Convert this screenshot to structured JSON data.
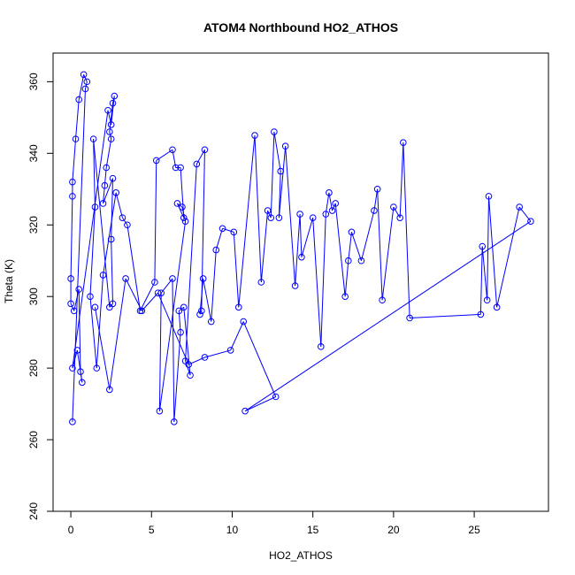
{
  "chart_data": {
    "type": "scatter",
    "title": "ATOM4 Northbound HO2_ATHOS",
    "xlabel": "HO2_ATHOS",
    "ylabel": "Theta (K)",
    "xlim": [
      -1.1,
      29.6
    ],
    "ylim": [
      240,
      368
    ],
    "x_ticks": [
      0,
      5,
      10,
      15,
      20,
      25
    ],
    "y_ticks": [
      240,
      260,
      280,
      300,
      320,
      340,
      360
    ],
    "grid": false,
    "legend": "none",
    "marker": "open-circle",
    "connected": true,
    "color": "#0000ff",
    "series": [
      {
        "x": [
          0.1,
          0.9,
          1.0,
          0.8,
          0.5,
          0.3,
          0.1,
          0.1,
          0.0,
          0.0,
          0.2,
          0.5,
          0.6,
          0.7,
          0.4,
          0.1,
          2.3,
          2.5,
          2.7,
          2.6,
          2.4,
          2.5,
          2.2,
          2.1,
          2.0,
          2.6,
          2.5,
          2.6,
          2.4,
          1.4,
          1.5,
          1.2,
          1.6,
          2.0,
          2.8,
          3.2,
          3.5,
          4.3,
          5.2,
          5.3,
          6.3,
          6.5,
          6.8,
          7.0,
          6.6,
          6.9,
          7.1,
          5.5,
          5.6,
          6.3,
          6.4,
          6.8,
          6.7,
          7.0,
          7.4,
          7.1,
          7.8,
          8.3,
          8.1,
          8.0,
          8.2,
          8.7,
          9.0,
          9.4,
          10.1,
          10.4,
          11.4,
          11.8,
          12.2,
          12.4,
          12.6,
          13.0,
          12.9,
          13.3,
          13.9,
          14.2,
          14.3,
          15.0,
          15.5,
          15.8,
          16.0,
          16.2,
          16.4,
          17.0,
          17.2,
          17.4,
          18.0,
          18.8,
          19.0,
          19.3,
          20.0,
          20.4,
          20.6,
          21.0,
          25.4,
          25.5,
          25.8,
          25.9,
          26.4,
          27.8,
          28.5,
          10.8,
          12.7,
          10.7,
          9.9,
          8.3,
          7.3,
          5.4,
          4.4,
          3.4,
          2.4,
          1.5
        ],
        "y": [
          265,
          358,
          360,
          362,
          355,
          344,
          332,
          328,
          305,
          298,
          296,
          302,
          279,
          276,
          285,
          280,
          352,
          348,
          356,
          354,
          346,
          344,
          336,
          331,
          326,
          333,
          316,
          298,
          297,
          344,
          325,
          300,
          280,
          306,
          329,
          322,
          320,
          296,
          304,
          338,
          341,
          336,
          336,
          322,
          326,
          325,
          321,
          268,
          301,
          305,
          265,
          290,
          296,
          297,
          278,
          282,
          337,
          341,
          296,
          295,
          305,
          293,
          313,
          319,
          318,
          297,
          345,
          304,
          324,
          322,
          346,
          335,
          322,
          342,
          303,
          323,
          311,
          322,
          286,
          323,
          329,
          324,
          326,
          300,
          310,
          318,
          310,
          324,
          330,
          299,
          325,
          322,
          343,
          294,
          295,
          314,
          299,
          328,
          297,
          325,
          321,
          268,
          272,
          293,
          285,
          283,
          281,
          301,
          296,
          305,
          274,
          297
        ]
      }
    ]
  }
}
